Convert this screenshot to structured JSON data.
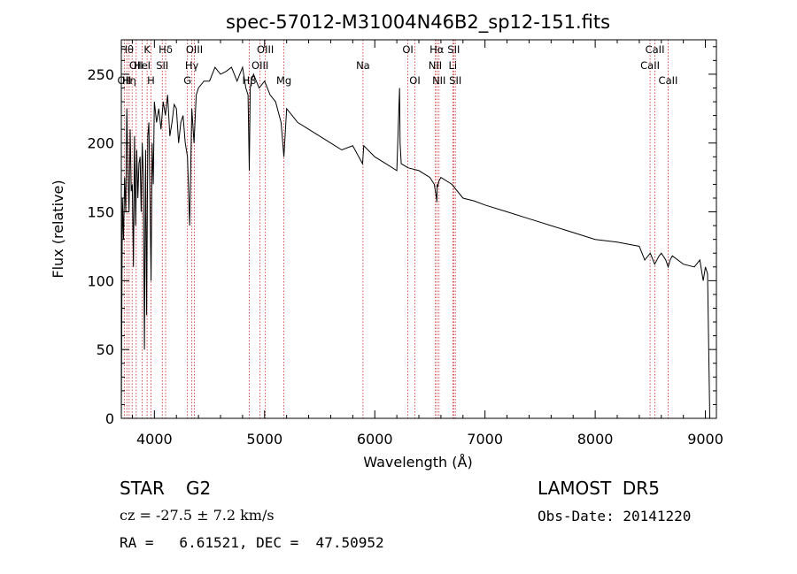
{
  "chart_data": {
    "type": "line",
    "title": "spec-57012-M31004N46B2_sp12-151.fits",
    "xlabel": "Wavelength (Å)",
    "ylabel": "Flux (relative)",
    "xlim": [
      3700,
      9100
    ],
    "ylim": [
      0,
      275
    ],
    "xticks": [
      4000,
      5000,
      6000,
      7000,
      8000,
      9000
    ],
    "yticks": [
      0,
      50,
      100,
      150,
      200,
      250
    ],
    "grid": false,
    "line_color": "#000000",
    "marker_color": "#cc2222",
    "series": [
      {
        "x": [
          3700,
          3710,
          3720,
          3730,
          3740,
          3750,
          3760,
          3770,
          3780,
          3790,
          3800,
          3810,
          3820,
          3830,
          3840,
          3850,
          3860,
          3870,
          3880,
          3890,
          3900,
          3910,
          3920,
          3930,
          3940,
          3950,
          3960,
          3970,
          3980,
          3990,
          4000,
          4020,
          4040,
          4060,
          4080,
          4100,
          4120,
          4140,
          4160,
          4180,
          4200,
          4220,
          4240,
          4260,
          4280,
          4300,
          4320,
          4340,
          4360,
          4380,
          4400,
          4450,
          4500,
          4550,
          4600,
          4650,
          4700,
          4750,
          4800,
          4830,
          4850,
          4861,
          4870,
          4880,
          4900,
          4950,
          5000,
          5050,
          5100,
          5150,
          5175,
          5200,
          5250,
          5300,
          5400,
          5500,
          5600,
          5700,
          5800,
          5889,
          5900,
          6000,
          6100,
          6200,
          6225,
          6230,
          6240,
          6300,
          6400,
          6500,
          6540,
          6560,
          6563,
          6566,
          6570,
          6580,
          6600,
          6700,
          6800,
          6900,
          7000,
          7200,
          7400,
          7600,
          7800,
          8000,
          8200,
          8400,
          8450,
          8500,
          8540,
          8580,
          8600,
          8640,
          8662,
          8680,
          8700,
          8800,
          8900,
          8950,
          8980,
          9000,
          9020,
          9040
        ],
        "values": [
          0,
          160,
          130,
          175,
          150,
          225,
          180,
          150,
          210,
          165,
          170,
          110,
          205,
          140,
          195,
          160,
          185,
          190,
          150,
          200,
          175,
          50,
          195,
          75,
          205,
          215,
          160,
          100,
          200,
          170,
          230,
          215,
          225,
          210,
          230,
          220,
          235,
          205,
          215,
          228,
          225,
          200,
          215,
          220,
          200,
          190,
          140,
          225,
          200,
          235,
          240,
          245,
          245,
          255,
          250,
          252,
          255,
          245,
          255,
          240,
          235,
          180,
          240,
          245,
          250,
          240,
          245,
          235,
          230,
          215,
          190,
          225,
          220,
          215,
          210,
          205,
          200,
          195,
          198,
          185,
          198,
          190,
          185,
          180,
          240,
          200,
          185,
          182,
          180,
          175,
          170,
          160,
          157,
          170,
          168,
          172,
          175,
          170,
          160,
          158,
          155,
          150,
          145,
          140,
          135,
          130,
          128,
          125,
          115,
          120,
          112,
          118,
          120,
          115,
          110,
          115,
          118,
          112,
          110,
          115,
          100,
          110,
          105,
          0
        ],
        "name": ""
      }
    ],
    "spectral_lines": [
      {
        "wavelength": 3727,
        "label": "OII",
        "row": 2
      },
      {
        "wavelength": 3750,
        "label": "Hθ",
        "row": 0
      },
      {
        "wavelength": 3771,
        "label": "Hη",
        "row": 2
      },
      {
        "wavelength": 3798,
        "label": "",
        "row": 0
      },
      {
        "wavelength": 3835,
        "label": "OII",
        "row": 1
      },
      {
        "wavelength": 3889,
        "label": "HeI",
        "row": 1
      },
      {
        "wavelength": 3934,
        "label": "K",
        "row": 0
      },
      {
        "wavelength": 3969,
        "label": "H",
        "row": 2
      },
      {
        "wavelength": 4072,
        "label": "SII",
        "row": 1
      },
      {
        "wavelength": 4102,
        "label": "Hδ",
        "row": 0
      },
      {
        "wavelength": 4300,
        "label": "G",
        "row": 2
      },
      {
        "wavelength": 4340,
        "label": "Hγ",
        "row": 1
      },
      {
        "wavelength": 4363,
        "label": "OIII",
        "row": 0
      },
      {
        "wavelength": 4861,
        "label": "Hβ",
        "row": 2
      },
      {
        "wavelength": 4959,
        "label": "OIII",
        "row": 1
      },
      {
        "wavelength": 5007,
        "label": "OIII",
        "row": 0
      },
      {
        "wavelength": 5175,
        "label": "Mg",
        "row": 2
      },
      {
        "wavelength": 5893,
        "label": "Na",
        "row": 1
      },
      {
        "wavelength": 6300,
        "label": "OI",
        "row": 0
      },
      {
        "wavelength": 6364,
        "label": "OI",
        "row": 2
      },
      {
        "wavelength": 6548,
        "label": "NII",
        "row": 1
      },
      {
        "wavelength": 6563,
        "label": "Hα",
        "row": 0
      },
      {
        "wavelength": 6583,
        "label": "NII",
        "row": 2
      },
      {
        "wavelength": 6708,
        "label": "Li",
        "row": 1
      },
      {
        "wavelength": 6716,
        "label": "SII",
        "row": 0
      },
      {
        "wavelength": 6731,
        "label": "SII",
        "row": 2
      },
      {
        "wavelength": 8498,
        "label": "CaII",
        "row": 1
      },
      {
        "wavelength": 8542,
        "label": "CaII",
        "row": 0
      },
      {
        "wavelength": 8662,
        "label": "CaII",
        "row": 2
      }
    ]
  },
  "info": {
    "object_class": "STAR",
    "subclass": "G2",
    "survey": "LAMOST  DR5",
    "velocity": "cz = -27.5 ± 7.2 km/s",
    "obs_date": "Obs-Date: 20141220",
    "coords": "RA =   6.61521, DEC =  47.50952"
  }
}
